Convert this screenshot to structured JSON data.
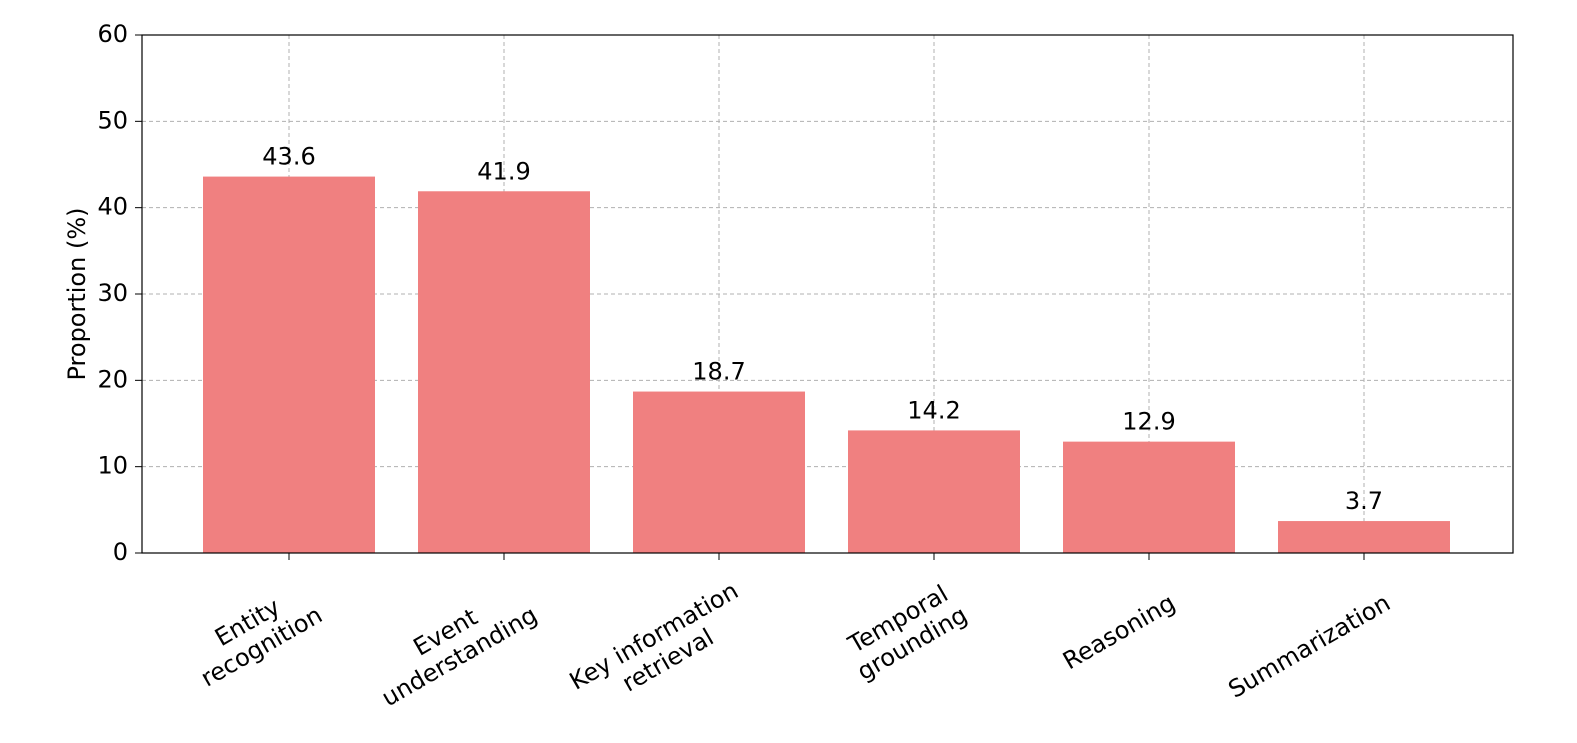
{
  "chart_data": {
    "type": "bar",
    "ylabel": "Proportion (%)",
    "categories": [
      "Entity\nrecognition",
      "Event\nunderstanding",
      "Key information\nretrieval",
      "Temporal\ngrounding",
      "Reasoning",
      "Summarization"
    ],
    "values": [
      43.6,
      41.9,
      18.7,
      14.2,
      12.9,
      3.7
    ],
    "color": "#f08080",
    "ylim": [
      0,
      60
    ],
    "yticks": [
      0,
      10,
      20,
      30,
      40,
      50,
      60
    ],
    "grid": true
  }
}
